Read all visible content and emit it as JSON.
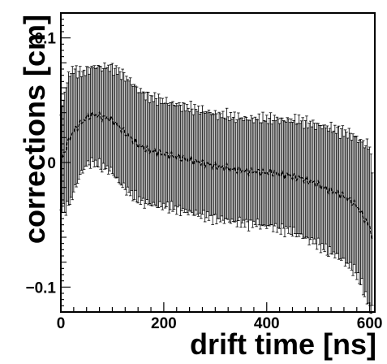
{
  "chart_data": {
    "type": "line",
    "title": "",
    "xlabel": "drift time [ns]",
    "ylabel": "corrections [cm]",
    "xlim": [
      0,
      610
    ],
    "ylim": [
      -0.12,
      0.12
    ],
    "x_ticks": [
      {
        "value": 0,
        "label": "0"
      },
      {
        "value": 200,
        "label": "200"
      },
      {
        "value": 400,
        "label": "400"
      },
      {
        "value": 600,
        "label": "600"
      }
    ],
    "y_ticks": [
      {
        "value": 0.1,
        "label": "0.1"
      },
      {
        "value": 0,
        "label": "0"
      },
      {
        "value": -0.1,
        "label": "−0.1"
      }
    ],
    "grid": false,
    "legend": "none",
    "error_bars": true,
    "series": [
      {
        "points": [
          {
            "x": 0,
            "y": 0.0,
            "err": 0.038
          },
          {
            "x": 10,
            "y": 0.012,
            "err": 0.05
          },
          {
            "x": 20,
            "y": 0.022,
            "err": 0.052
          },
          {
            "x": 30,
            "y": 0.028,
            "err": 0.046
          },
          {
            "x": 40,
            "y": 0.032,
            "err": 0.04
          },
          {
            "x": 50,
            "y": 0.036,
            "err": 0.038
          },
          {
            "x": 60,
            "y": 0.038,
            "err": 0.038
          },
          {
            "x": 70,
            "y": 0.038,
            "err": 0.039
          },
          {
            "x": 80,
            "y": 0.036,
            "err": 0.04
          },
          {
            "x": 90,
            "y": 0.036,
            "err": 0.041
          },
          {
            "x": 100,
            "y": 0.034,
            "err": 0.042
          },
          {
            "x": 110,
            "y": 0.03,
            "err": 0.044
          },
          {
            "x": 120,
            "y": 0.026,
            "err": 0.045
          },
          {
            "x": 130,
            "y": 0.022,
            "err": 0.045
          },
          {
            "x": 140,
            "y": 0.018,
            "err": 0.045
          },
          {
            "x": 150,
            "y": 0.014,
            "err": 0.044
          },
          {
            "x": 160,
            "y": 0.012,
            "err": 0.044
          },
          {
            "x": 170,
            "y": 0.01,
            "err": 0.043
          },
          {
            "x": 180,
            "y": 0.009,
            "err": 0.043
          },
          {
            "x": 190,
            "y": 0.008,
            "err": 0.043
          },
          {
            "x": 200,
            "y": 0.007,
            "err": 0.042
          },
          {
            "x": 210,
            "y": 0.006,
            "err": 0.042
          },
          {
            "x": 220,
            "y": 0.005,
            "err": 0.042
          },
          {
            "x": 230,
            "y": 0.004,
            "err": 0.042
          },
          {
            "x": 240,
            "y": 0.003,
            "err": 0.042
          },
          {
            "x": 250,
            "y": 0.002,
            "err": 0.042
          },
          {
            "x": 260,
            "y": 0.001,
            "err": 0.042
          },
          {
            "x": 270,
            "y": 0.0,
            "err": 0.042
          },
          {
            "x": 280,
            "y": -0.001,
            "err": 0.042
          },
          {
            "x": 290,
            "y": -0.002,
            "err": 0.042
          },
          {
            "x": 300,
            "y": -0.003,
            "err": 0.042
          },
          {
            "x": 310,
            "y": -0.004,
            "err": 0.042
          },
          {
            "x": 320,
            "y": -0.004,
            "err": 0.042
          },
          {
            "x": 330,
            "y": -0.005,
            "err": 0.042
          },
          {
            "x": 340,
            "y": -0.006,
            "err": 0.042
          },
          {
            "x": 350,
            "y": -0.006,
            "err": 0.042
          },
          {
            "x": 360,
            "y": -0.007,
            "err": 0.042
          },
          {
            "x": 370,
            "y": -0.007,
            "err": 0.042
          },
          {
            "x": 380,
            "y": -0.007,
            "err": 0.042
          },
          {
            "x": 390,
            "y": -0.008,
            "err": 0.043
          },
          {
            "x": 400,
            "y": -0.008,
            "err": 0.043
          },
          {
            "x": 410,
            "y": -0.008,
            "err": 0.043
          },
          {
            "x": 420,
            "y": -0.009,
            "err": 0.044
          },
          {
            "x": 430,
            "y": -0.01,
            "err": 0.044
          },
          {
            "x": 440,
            "y": -0.01,
            "err": 0.044
          },
          {
            "x": 450,
            "y": -0.011,
            "err": 0.045
          },
          {
            "x": 460,
            "y": -0.012,
            "err": 0.046
          },
          {
            "x": 470,
            "y": -0.013,
            "err": 0.046
          },
          {
            "x": 480,
            "y": -0.015,
            "err": 0.047
          },
          {
            "x": 490,
            "y": -0.016,
            "err": 0.047
          },
          {
            "x": 500,
            "y": -0.018,
            "err": 0.048
          },
          {
            "x": 510,
            "y": -0.02,
            "err": 0.049
          },
          {
            "x": 520,
            "y": -0.022,
            "err": 0.05
          },
          {
            "x": 530,
            "y": -0.023,
            "err": 0.05
          },
          {
            "x": 540,
            "y": -0.025,
            "err": 0.051
          },
          {
            "x": 550,
            "y": -0.027,
            "err": 0.052
          },
          {
            "x": 560,
            "y": -0.03,
            "err": 0.053
          },
          {
            "x": 570,
            "y": -0.033,
            "err": 0.054
          },
          {
            "x": 580,
            "y": -0.038,
            "err": 0.056
          },
          {
            "x": 590,
            "y": -0.045,
            "err": 0.06
          },
          {
            "x": 600,
            "y": -0.052,
            "err": 0.065
          },
          {
            "x": 605,
            "y": -0.06,
            "err": 0.056
          }
        ]
      }
    ]
  }
}
